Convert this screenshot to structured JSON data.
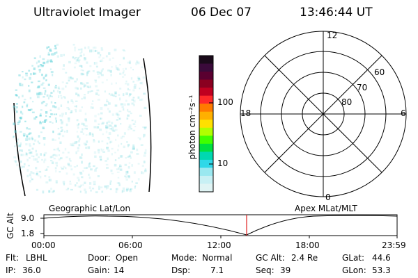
{
  "header": {
    "title": "Ultraviolet Imager",
    "date": "06 Dec 07",
    "time": "13:46:44 UT"
  },
  "colorbar": {
    "label": "photon cm⁻²s⁻¹",
    "ticks": [
      "100",
      "10"
    ],
    "scale": "log",
    "colors": [
      "#1a0a1a",
      "#3a0a3a",
      "#5a0030",
      "#8a0020",
      "#c00020",
      "#ff2a2a",
      "#ff7a00",
      "#ffb000",
      "#ffe000",
      "#b0ff00",
      "#40ff00",
      "#00e040",
      "#00d8b0",
      "#30d8e8",
      "#9ae8f0",
      "#c8f0f4",
      "#e0f4f4"
    ]
  },
  "polar_plot": {
    "mlt_labels": [
      "12",
      "6",
      "0",
      "18"
    ],
    "lat_labels": [
      "60",
      "70",
      "80"
    ]
  },
  "geo_image": {
    "dot_color": "#5ad0d8"
  },
  "timeline": {
    "left_label": "Geographic Lat/Lon",
    "right_label": "Apex MLat/MLT",
    "axis_title": "GC Alt",
    "y_ticks": [
      "9.0",
      "1.8"
    ],
    "x_ticks": [
      "00:00",
      "06:00",
      "12:00",
      "18:00",
      "23:59"
    ],
    "marker_time": "13:46:44",
    "marker_color": "#e02020"
  },
  "status": {
    "row1": [
      {
        "label": "Flt:",
        "value": "LBHL"
      },
      {
        "label": "Door:",
        "value": "Open"
      },
      {
        "label": "Mode:",
        "value": "Normal"
      },
      {
        "label": "GC Alt:",
        "value": "2.4 Re"
      },
      {
        "label": "GLat:",
        "value": "44.6"
      }
    ],
    "row2": [
      {
        "label": "IP:",
        "value": "36.0"
      },
      {
        "label": "Gain:",
        "value": "14"
      },
      {
        "label": "Dsp:",
        "value": "7.1"
      },
      {
        "label": "Seq:",
        "value": "39"
      },
      {
        "label": "GLon:",
        "value": "53.3"
      }
    ]
  }
}
